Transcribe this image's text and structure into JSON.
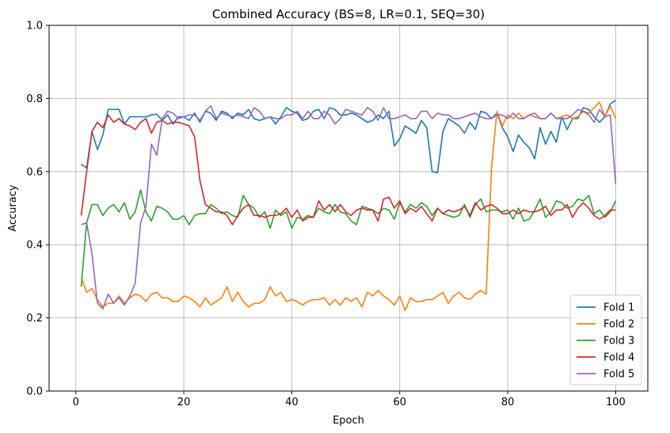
{
  "chart_data": {
    "type": "line",
    "title": "Combined Accuracy (BS=8, LR=0.1, SEQ=30)",
    "xlabel": "Epoch",
    "ylabel": "Accuracy",
    "xlim": [
      -4.95,
      105.95
    ],
    "ylim": [
      0.0,
      1.0
    ],
    "xticks": [
      0,
      20,
      40,
      60,
      80,
      100
    ],
    "yticks": [
      0.0,
      0.2,
      0.4,
      0.6,
      0.8,
      1.0
    ],
    "xtick_labels": [
      "0",
      "20",
      "40",
      "60",
      "80",
      "100"
    ],
    "ytick_labels": [
      "0.0",
      "0.2",
      "0.4",
      "0.6",
      "0.8",
      "1.0"
    ],
    "grid": true,
    "legend_position": "lower right",
    "x_start": 1,
    "series": [
      {
        "name": "Fold 1",
        "color": "#1f77b4",
        "values": [
          0.62,
          0.61,
          0.71,
          0.66,
          0.7,
          0.77,
          0.77,
          0.77,
          0.73,
          0.75,
          0.75,
          0.75,
          0.75,
          0.755,
          0.757,
          0.74,
          0.755,
          0.73,
          0.75,
          0.75,
          0.74,
          0.76,
          0.735,
          0.765,
          0.76,
          0.74,
          0.765,
          0.76,
          0.745,
          0.76,
          0.755,
          0.77,
          0.745,
          0.74,
          0.745,
          0.75,
          0.73,
          0.75,
          0.775,
          0.765,
          0.76,
          0.74,
          0.745,
          0.765,
          0.77,
          0.745,
          0.775,
          0.77,
          0.755,
          0.755,
          0.76,
          0.755,
          0.745,
          0.735,
          0.74,
          0.755,
          0.745,
          0.765,
          0.67,
          0.69,
          0.725,
          0.715,
          0.705,
          0.74,
          0.72,
          0.6,
          0.597,
          0.71,
          0.745,
          0.735,
          0.725,
          0.705,
          0.735,
          0.715,
          0.765,
          0.76,
          0.745,
          0.76,
          0.72,
          0.695,
          0.655,
          0.7,
          0.68,
          0.665,
          0.635,
          0.72,
          0.675,
          0.71,
          0.68,
          0.75,
          0.715,
          0.745,
          0.745,
          0.775,
          0.77,
          0.75,
          0.735,
          0.75,
          0.785,
          0.795
        ]
      },
      {
        "name": "Fold 2",
        "color": "#ff7f0e",
        "values": [
          0.31,
          0.27,
          0.28,
          0.25,
          0.23,
          0.24,
          0.24,
          0.26,
          0.24,
          0.255,
          0.265,
          0.26,
          0.245,
          0.265,
          0.27,
          0.255,
          0.255,
          0.245,
          0.245,
          0.26,
          0.255,
          0.245,
          0.23,
          0.255,
          0.235,
          0.245,
          0.255,
          0.285,
          0.245,
          0.27,
          0.245,
          0.23,
          0.24,
          0.24,
          0.25,
          0.285,
          0.26,
          0.27,
          0.245,
          0.25,
          0.245,
          0.235,
          0.245,
          0.25,
          0.25,
          0.255,
          0.235,
          0.25,
          0.235,
          0.255,
          0.245,
          0.255,
          0.23,
          0.27,
          0.26,
          0.275,
          0.26,
          0.25,
          0.235,
          0.26,
          0.22,
          0.255,
          0.245,
          0.245,
          0.25,
          0.25,
          0.26,
          0.27,
          0.24,
          0.26,
          0.27,
          0.255,
          0.25,
          0.265,
          0.275,
          0.265,
          0.61,
          0.765,
          0.725,
          0.755,
          0.745,
          0.76,
          0.745,
          0.755,
          0.75,
          0.745,
          0.745,
          0.76,
          0.745,
          0.75,
          0.755,
          0.745,
          0.75,
          0.765,
          0.76,
          0.775,
          0.79,
          0.75,
          0.78,
          0.745
        ]
      },
      {
        "name": "Fold 3",
        "color": "#2ca02c",
        "values": [
          0.285,
          0.46,
          0.51,
          0.51,
          0.48,
          0.5,
          0.51,
          0.49,
          0.515,
          0.47,
          0.49,
          0.55,
          0.49,
          0.465,
          0.505,
          0.5,
          0.49,
          0.47,
          0.47,
          0.48,
          0.455,
          0.48,
          0.485,
          0.485,
          0.51,
          0.5,
          0.485,
          0.49,
          0.48,
          0.475,
          0.535,
          0.51,
          0.5,
          0.475,
          0.49,
          0.445,
          0.495,
          0.48,
          0.49,
          0.445,
          0.475,
          0.47,
          0.48,
          0.475,
          0.5,
          0.49,
          0.485,
          0.51,
          0.49,
          0.485,
          0.465,
          0.455,
          0.505,
          0.5,
          0.495,
          0.485,
          0.5,
          0.495,
          0.47,
          0.515,
          0.49,
          0.51,
          0.5,
          0.515,
          0.505,
          0.48,
          0.5,
          0.485,
          0.48,
          0.475,
          0.48,
          0.51,
          0.475,
          0.51,
          0.525,
          0.49,
          0.495,
          0.495,
          0.49,
          0.495,
          0.47,
          0.5,
          0.465,
          0.47,
          0.495,
          0.525,
          0.475,
          0.49,
          0.52,
          0.515,
          0.5,
          0.505,
          0.525,
          0.52,
          0.535,
          0.485,
          0.495,
          0.475,
          0.49,
          0.52
        ]
      },
      {
        "name": "Fold 4",
        "color": "#d62728",
        "values": [
          0.48,
          0.6,
          0.71,
          0.735,
          0.72,
          0.755,
          0.735,
          0.745,
          0.73,
          0.725,
          0.715,
          0.735,
          0.745,
          0.705,
          0.735,
          0.74,
          0.73,
          0.735,
          0.735,
          0.73,
          0.725,
          0.695,
          0.575,
          0.51,
          0.5,
          0.49,
          0.49,
          0.48,
          0.455,
          0.48,
          0.5,
          0.51,
          0.48,
          0.48,
          0.475,
          0.48,
          0.48,
          0.485,
          0.5,
          0.475,
          0.495,
          0.465,
          0.475,
          0.475,
          0.52,
          0.495,
          0.51,
          0.49,
          0.51,
          0.49,
          0.48,
          0.495,
          0.5,
          0.495,
          0.495,
          0.465,
          0.525,
          0.53,
          0.5,
          0.52,
          0.485,
          0.5,
          0.49,
          0.505,
          0.485,
          0.465,
          0.5,
          0.485,
          0.495,
          0.49,
          0.495,
          0.505,
          0.48,
          0.515,
          0.495,
          0.505,
          0.51,
          0.5,
          0.485,
          0.485,
          0.495,
          0.485,
          0.495,
          0.49,
          0.49,
          0.495,
          0.505,
          0.48,
          0.495,
          0.495,
          0.51,
          0.475,
          0.5,
          0.515,
          0.5,
          0.48,
          0.47,
          0.48,
          0.495,
          0.495
        ]
      },
      {
        "name": "Fold 5",
        "color": "#9467bd",
        "values": [
          0.455,
          0.46,
          0.375,
          0.24,
          0.225,
          0.265,
          0.24,
          0.255,
          0.235,
          0.26,
          0.295,
          0.46,
          0.505,
          0.675,
          0.645,
          0.745,
          0.765,
          0.76,
          0.745,
          0.75,
          0.755,
          0.755,
          0.74,
          0.765,
          0.78,
          0.745,
          0.76,
          0.755,
          0.75,
          0.755,
          0.75,
          0.745,
          0.775,
          0.765,
          0.745,
          0.75,
          0.745,
          0.745,
          0.755,
          0.755,
          0.765,
          0.745,
          0.765,
          0.745,
          0.745,
          0.765,
          0.755,
          0.73,
          0.745,
          0.77,
          0.765,
          0.76,
          0.755,
          0.775,
          0.765,
          0.74,
          0.775,
          0.745,
          0.745,
          0.75,
          0.755,
          0.745,
          0.745,
          0.765,
          0.765,
          0.745,
          0.76,
          0.755,
          0.755,
          0.745,
          0.745,
          0.75,
          0.755,
          0.76,
          0.75,
          0.745,
          0.745,
          0.755,
          0.755,
          0.745,
          0.76,
          0.745,
          0.745,
          0.755,
          0.76,
          0.745,
          0.745,
          0.76,
          0.745,
          0.745,
          0.745,
          0.755,
          0.77,
          0.765,
          0.755,
          0.735,
          0.77,
          0.75,
          0.755,
          0.565
        ]
      }
    ]
  }
}
